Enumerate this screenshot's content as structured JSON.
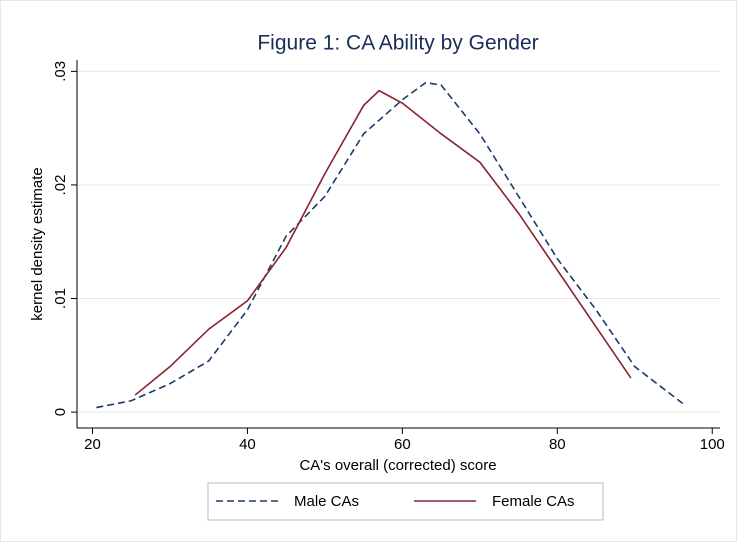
{
  "chart_data": {
    "type": "line",
    "title": "Figure 1: CA Ability by Gender",
    "xlabel": "CA's overall (corrected) score",
    "ylabel": "kernel density estimate",
    "xlim": [
      18,
      101
    ],
    "xticks": [
      20,
      40,
      60,
      80,
      100
    ],
    "ylim": [
      -0.0014,
      0.031
    ],
    "yticks": [
      0,
      {
        "value": 0.01,
        "label": ".01"
      },
      {
        "value": 0.02,
        "label": ".02"
      },
      {
        "value": 0.03,
        "label": ".03"
      }
    ],
    "grid": true,
    "legend": "bottom",
    "series": [
      {
        "name": "Male CAs",
        "color": "#1a3a6b",
        "dash": true,
        "x": [
          20.5,
          25,
          30,
          35,
          40,
          45,
          50,
          55,
          60,
          63,
          65,
          70,
          75,
          80,
          85,
          90,
          96.5
        ],
        "values": [
          0.0004,
          0.001,
          0.0025,
          0.0045,
          0.009,
          0.0155,
          0.019,
          0.0245,
          0.0275,
          0.029,
          0.0288,
          0.0245,
          0.019,
          0.0135,
          0.009,
          0.004,
          0.0006
        ]
      },
      {
        "name": "Female CAs",
        "color": "#8b2232",
        "dash": false,
        "x": [
          25.5,
          30,
          35,
          40,
          45,
          50,
          55,
          57,
          60,
          65,
          70,
          75,
          80,
          85,
          89.5
        ],
        "values": [
          0.0015,
          0.004,
          0.0073,
          0.0098,
          0.0145,
          0.021,
          0.027,
          0.0283,
          0.0272,
          0.0245,
          0.022,
          0.0175,
          0.0125,
          0.0075,
          0.003
        ]
      }
    ]
  }
}
